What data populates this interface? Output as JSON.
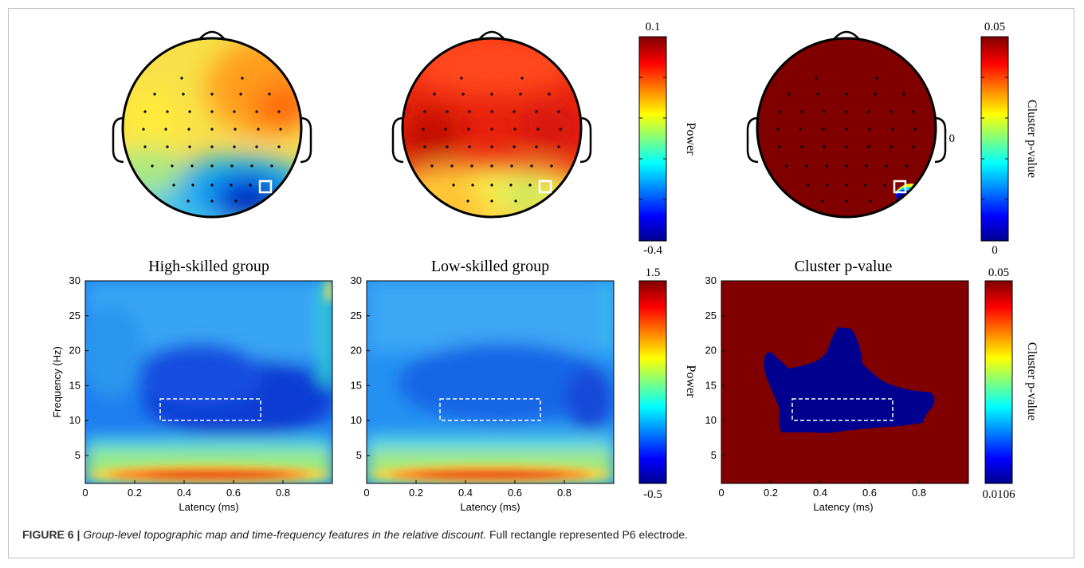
{
  "figure": {
    "caption_label": "FIGURE 6 |",
    "caption_title": "Group-level topographic map and time-frequency features in the relative discount.",
    "caption_rest": "Full rectangle represented P6 electrode."
  },
  "topomaps": [
    {
      "id": "high",
      "electrode": "P6"
    },
    {
      "id": "low",
      "electrode": "P6"
    },
    {
      "id": "cluster",
      "electrode": "P6"
    }
  ],
  "colorbars": {
    "topo_power": {
      "label": "Power",
      "top": "0.1",
      "bottom": "-0.4"
    },
    "topo_cluster": {
      "label": "Cluster p-value",
      "top": "0.05",
      "middle": "0",
      "bottom": "0"
    },
    "tf_power": {
      "label": "Power",
      "top": "1.5",
      "bottom": "-0.5"
    },
    "tf_cluster": {
      "label": "Cluster p-value",
      "top": "0.05",
      "bottom": "0.0106"
    }
  },
  "tf_panels": [
    {
      "id": "high",
      "title": "High-skilled group",
      "xlabel": "Latency (ms)",
      "ylabel": "Frequency (Hz)"
    },
    {
      "id": "low",
      "title": "Low-skilled group",
      "xlabel": "Latency (ms)",
      "ylabel": ""
    },
    {
      "id": "cluster",
      "title": "Cluster p-value",
      "xlabel": "Latency (ms)",
      "ylabel": ""
    }
  ],
  "axes": {
    "x_ticks": [
      "0",
      "0.2",
      "0.4",
      "0.6",
      "0.8"
    ],
    "y_ticks": [
      "30",
      "25",
      "20",
      "15",
      "10",
      "5"
    ],
    "xlim": [
      0,
      1
    ],
    "ylim": [
      1,
      30
    ],
    "roi": {
      "latency": [
        0.3,
        0.7
      ],
      "frequency": [
        10,
        13
      ]
    }
  },
  "colors": {
    "jet": [
      "#00008f",
      "#0000ff",
      "#00ffff",
      "#ffff00",
      "#ff0000",
      "#800000"
    ],
    "dark_red": "#800000",
    "cluster_blue": "#00008f"
  }
}
